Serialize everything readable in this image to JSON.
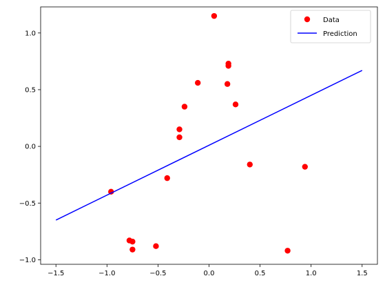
{
  "chart_data": {
    "type": "scatter",
    "title": "",
    "xlabel": "",
    "ylabel": "",
    "xlim": [
      -1.65,
      1.65
    ],
    "ylim": [
      -1.04,
      1.23
    ],
    "xticks": [
      -1.5,
      -1.0,
      -0.5,
      0.0,
      0.5,
      1.0,
      1.5
    ],
    "xtick_labels": [
      "−1.5",
      "−1.0",
      "−0.5",
      "0.0",
      "0.5",
      "1.0",
      "1.5"
    ],
    "yticks": [
      -1.0,
      -0.5,
      0.0,
      0.5,
      1.0
    ],
    "ytick_labels": [
      "−1.0",
      "−0.5",
      "0.0",
      "0.5",
      "1.0"
    ],
    "grid": false,
    "legend_position": "top-right",
    "series": [
      {
        "name": "Data",
        "kind": "points",
        "color": "#ff0000",
        "x": [
          0.05,
          0.19,
          0.19,
          0.18,
          -0.11,
          0.26,
          -0.24,
          -0.29,
          -0.29,
          0.4,
          0.94,
          -0.96,
          -0.41,
          -0.78,
          -0.75,
          -0.52,
          -0.75,
          0.77
        ],
        "y": [
          1.15,
          0.73,
          0.71,
          0.55,
          0.56,
          0.37,
          0.35,
          0.15,
          0.08,
          -0.16,
          -0.18,
          -0.4,
          -0.28,
          -0.83,
          -0.84,
          -0.88,
          -0.91,
          -0.92
        ]
      },
      {
        "name": "Prediction",
        "kind": "line",
        "color": "#0000ff",
        "x": [
          -1.5,
          1.5
        ],
        "y": [
          -0.65,
          0.67
        ]
      }
    ]
  }
}
